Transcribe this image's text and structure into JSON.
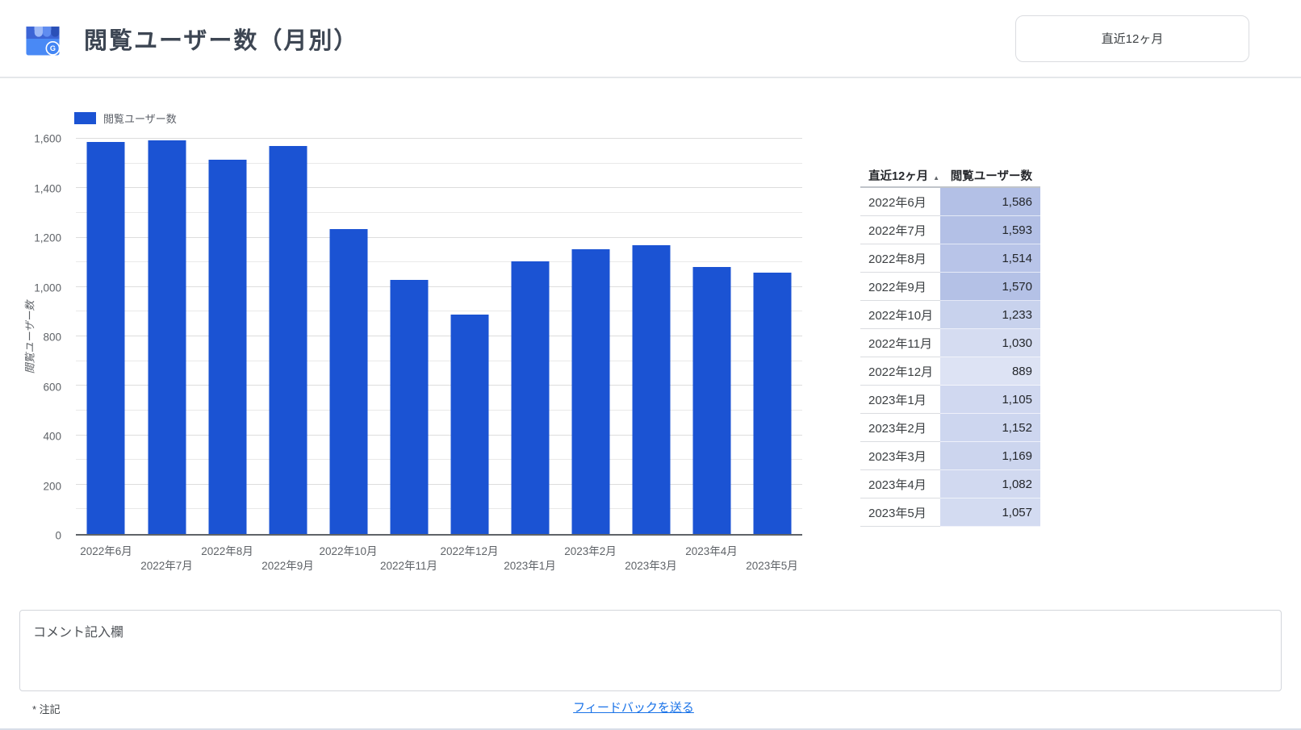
{
  "header": {
    "title": "閲覧ユーザー数（月別）",
    "range_button_label": "直近12ヶ月"
  },
  "icons": {
    "logo": "google-business-profile-icon",
    "sort": "sort-ascending-icon"
  },
  "chart_data": {
    "type": "bar",
    "title": "",
    "legend": [
      "閲覧ユーザー数"
    ],
    "categories": [
      "2022年6月",
      "2022年7月",
      "2022年8月",
      "2022年9月",
      "2022年10月",
      "2022年11月",
      "2022年12月",
      "2023年1月",
      "2023年2月",
      "2023年3月",
      "2023年4月",
      "2023年5月"
    ],
    "values": [
      1586,
      1593,
      1514,
      1570,
      1233,
      1030,
      889,
      1105,
      1152,
      1169,
      1082,
      1057
    ],
    "xlabel": "",
    "ylabel": "閲覧ユーザー数",
    "ylim": [
      0,
      1600
    ],
    "ytick_step": 200,
    "grid_step": 100,
    "yticks": [
      "0",
      "200",
      "400",
      "600",
      "800",
      "1,000",
      "1,200",
      "1,400",
      "1,600"
    ],
    "grid": true,
    "legend_position": "top-left",
    "bar_color": "#1b53d3"
  },
  "table": {
    "columns": [
      "直近12ヶ月",
      "閲覧ユーザー数"
    ],
    "sort_indicator": "▲",
    "rows": [
      {
        "month": "2022年6月",
        "value": "1,586"
      },
      {
        "month": "2022年7月",
        "value": "1,593"
      },
      {
        "month": "2022年8月",
        "value": "1,514"
      },
      {
        "month": "2022年9月",
        "value": "1,570"
      },
      {
        "month": "2022年10月",
        "value": "1,233"
      },
      {
        "month": "2022年11月",
        "value": "1,030"
      },
      {
        "month": "2022年12月",
        "value": "889"
      },
      {
        "month": "2023年1月",
        "value": "1,105"
      },
      {
        "month": "2023年2月",
        "value": "1,152"
      },
      {
        "month": "2023年3月",
        "value": "1,169"
      },
      {
        "month": "2023年4月",
        "value": "1,082"
      },
      {
        "month": "2023年5月",
        "value": "1,057"
      }
    ]
  },
  "comment": {
    "placeholder": "コメント記入欄"
  },
  "footer": {
    "note": "* 注記",
    "feedback_link": "フィードバックを送る"
  },
  "colors": {
    "bar": "#1b53d3",
    "link": "#1a73e8",
    "heat_min": "#dde3f4",
    "heat_max": "#b3c0e6"
  }
}
